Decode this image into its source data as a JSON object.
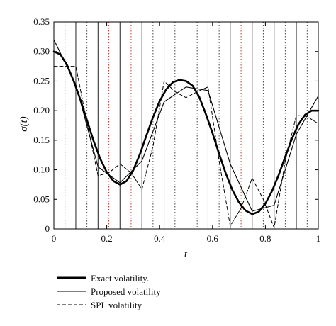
{
  "chart_data": {
    "type": "line",
    "title": "",
    "xlabel": "t",
    "ylabel": "σ(t)",
    "xlim": [
      0,
      1
    ],
    "ylim": [
      0,
      0.35
    ],
    "x_ticks": [
      "0",
      "0.2",
      "0.4",
      "0.6",
      "0.8",
      "1"
    ],
    "y_ticks": [
      "0",
      "0.05",
      "0.10",
      "0.15",
      "0.20",
      "0.25",
      "0.30",
      "0.35"
    ],
    "grid": false,
    "legend_position": "bottom",
    "vertical_lines": {
      "solid_black": [
        0.083,
        0.167,
        0.25,
        0.333,
        0.417,
        0.5,
        0.583,
        0.667,
        0.75,
        0.833,
        0.917
      ],
      "dotted_black": [
        0.042,
        0.125,
        0.375,
        0.458,
        0.542,
        0.625,
        0.792,
        0.875,
        0.958
      ],
      "dotted_red": [
        0.208,
        0.292,
        0.708
      ]
    },
    "series": [
      {
        "name": "Exact volatility.",
        "style": "thick-solid",
        "x": [
          0,
          0.025,
          0.05,
          0.075,
          0.1,
          0.125,
          0.15,
          0.175,
          0.2,
          0.225,
          0.25,
          0.275,
          0.3,
          0.325,
          0.35,
          0.375,
          0.4,
          0.425,
          0.45,
          0.475,
          0.5,
          0.525,
          0.55,
          0.575,
          0.6,
          0.625,
          0.65,
          0.675,
          0.7,
          0.725,
          0.75,
          0.775,
          0.8,
          0.825,
          0.85,
          0.875,
          0.9,
          0.925,
          0.95,
          0.975,
          1
        ],
        "y": [
          0.3,
          0.295,
          0.277,
          0.25,
          0.219,
          0.184,
          0.149,
          0.119,
          0.096,
          0.081,
          0.075,
          0.081,
          0.099,
          0.126,
          0.158,
          0.189,
          0.216,
          0.236,
          0.248,
          0.252,
          0.25,
          0.242,
          0.223,
          0.194,
          0.162,
          0.127,
          0.094,
          0.066,
          0.045,
          0.031,
          0.025,
          0.029,
          0.043,
          0.064,
          0.091,
          0.122,
          0.152,
          0.177,
          0.193,
          0.2,
          0.2
        ]
      },
      {
        "name": "Proposed volatility",
        "style": "thin-solid",
        "x": [
          0,
          0.083,
          0.167,
          0.25,
          0.333,
          0.417,
          0.5,
          0.583,
          0.667,
          0.75,
          0.833,
          0.917,
          1
        ],
        "y": [
          0.32,
          0.244,
          0.105,
          0.078,
          0.115,
          0.215,
          0.24,
          0.234,
          0.11,
          0.03,
          0.04,
          0.16,
          0.225
        ]
      },
      {
        "name": "SPL volatility",
        "style": "dashed",
        "x": [
          0,
          0.083,
          0.125,
          0.167,
          0.208,
          0.25,
          0.292,
          0.333,
          0.375,
          0.417,
          0.458,
          0.5,
          0.542,
          0.583,
          0.625,
          0.667,
          0.708,
          0.75,
          0.792,
          0.833,
          0.875,
          0.917,
          0.958,
          1
        ],
        "y": [
          0.275,
          0.275,
          0.18,
          0.09,
          0.095,
          0.11,
          0.095,
          0.067,
          0.14,
          0.25,
          0.232,
          0.222,
          0.232,
          0.24,
          0.115,
          0.005,
          0.035,
          0.086,
          0.05,
          0.002,
          0.115,
          0.192,
          0.19,
          0.178
        ]
      }
    ]
  }
}
